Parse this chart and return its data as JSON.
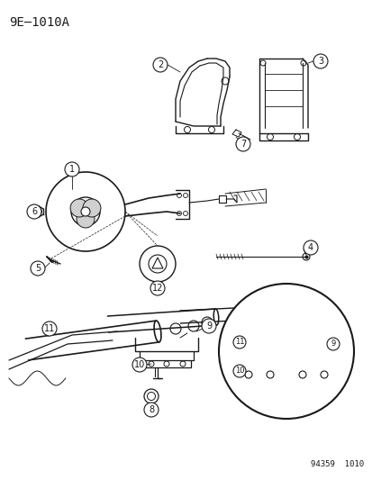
{
  "title": "9E–1010A",
  "background_color": "#ffffff",
  "line_color": "#1a1a1a",
  "diagram_number": "94359  1010",
  "fig_width": 4.14,
  "fig_height": 5.33,
  "dpi": 100
}
